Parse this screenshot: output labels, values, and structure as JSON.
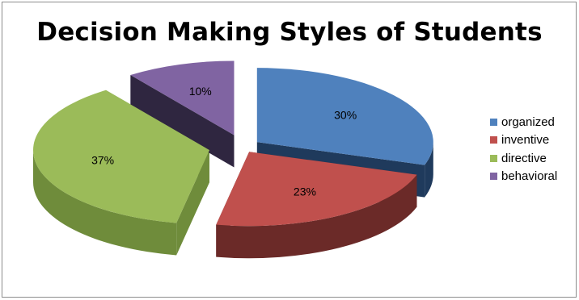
{
  "chart_data": {
    "type": "pie",
    "title": "Decision Making Styles of Students",
    "categories": [
      "organized",
      "inventive",
      "directive",
      "behavioral"
    ],
    "values": [
      30,
      23,
      37,
      10
    ],
    "labels": [
      "30%",
      "23%",
      "37%",
      "10%"
    ],
    "colors": [
      "#4f81bd",
      "#c0504d",
      "#9bbb59",
      "#8064a2"
    ],
    "side_colors": [
      "#1f3a5c",
      "#6b2a28",
      "#6f8c3b",
      "#2f2640"
    ],
    "legend_placement": "right",
    "style": "3d-exploded"
  }
}
